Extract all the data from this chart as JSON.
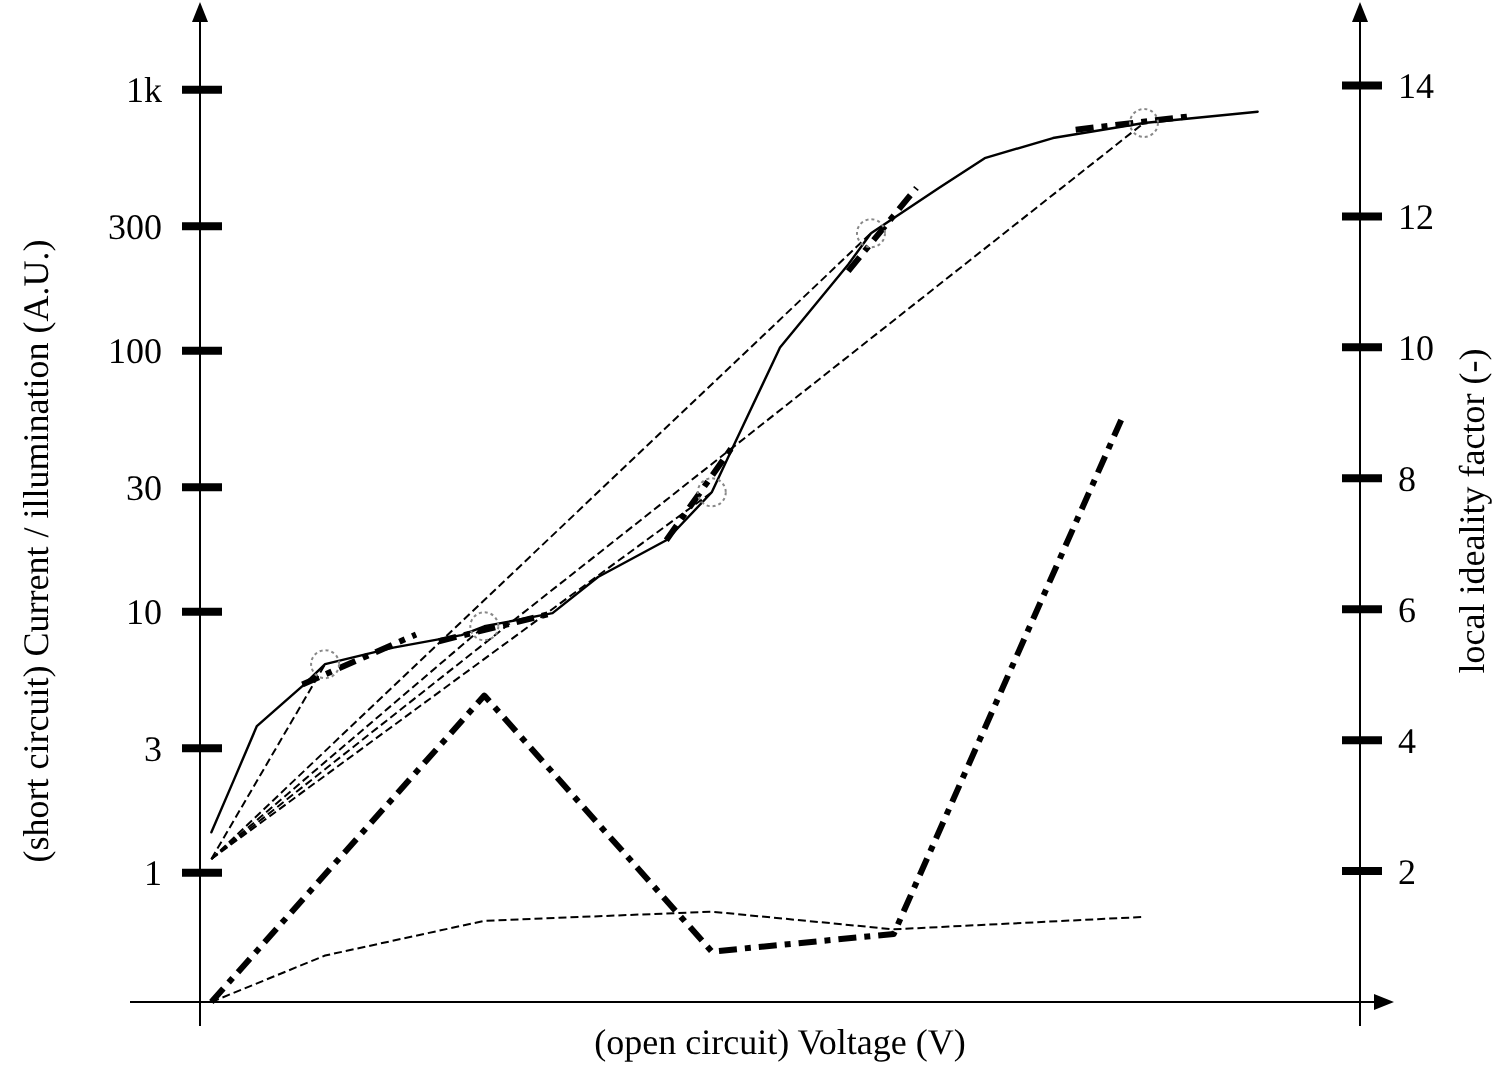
{
  "chart_data": {
    "type": "line",
    "xlabel": "(open circuit) Voltage (V)",
    "ylabel": "(short circuit) Current / illumination (A.U.)",
    "y2label": "local ideality factor (-)",
    "categories": [
      null,
      null,
      null,
      null,
      null,
      null,
      null,
      null,
      null,
      null,
      null,
      null,
      null,
      null,
      null,
      null,
      null,
      null,
      null,
      null,
      null,
      null,
      null,
      null,
      null,
      null,
      null,
      null,
      null,
      null,
      null,
      null,
      null,
      null,
      null,
      null,
      null,
      null,
      null,
      null,
      null,
      null,
      null,
      null,
      null,
      null,
      null,
      null,
      null,
      null,
      null
    ],
    "ylim": [
      0.32,
      1850
    ],
    "yticks": [
      1,
      3,
      10,
      30,
      100,
      300,
      {
        "value": 1000,
        "label": "1k"
      }
    ],
    "y2lim": [
      0,
      15
    ],
    "y2ticks": [
      2,
      4,
      6,
      8,
      10,
      12,
      14
    ],
    "log": "y",
    "grid": false,
    "tick_labels": "y",
    "marker": "none",
    "series": [
      {
        "color": "#000000",
        "line_style": "solid",
        "values": [
          1.43,
          2.28,
          3.65,
          null,
          5.19,
          6.3,
          null,
          null,
          7.29,
          null,
          null,
          8.14,
          8.8,
          null,
          null,
          9.88,
          null,
          13.6,
          null,
          null,
          18.8,
          null,
          28.7,
          44,
          null,
          103,
          null,
          null,
          214,
          282,
          null,
          null,
          421,
          null,
          547,
          null,
          null,
          653,
          null,
          null,
          null,
          746,
          null,
          null,
          null,
          null,
          824,
          null,
          null,
          null,
          null
        ]
      },
      {
        "color": "#000000",
        "line_style": "dotted",
        "values": [
          1.13,
          null,
          null,
          null,
          null,
          6.3,
          null,
          null,
          null,
          null,
          null,
          null,
          null,
          null,
          null,
          null,
          null,
          null,
          null,
          null,
          null,
          null,
          null,
          null,
          null,
          null,
          null,
          null,
          null,
          null,
          null,
          null,
          null,
          null,
          null,
          null,
          null,
          null,
          null,
          null,
          null,
          null,
          null,
          null,
          null,
          null,
          null,
          null,
          null,
          null,
          null
        ]
      },
      {
        "color": "#000000",
        "line_style": "dotted",
        "values": [
          1.13,
          null,
          null,
          null,
          null,
          null,
          null,
          null,
          null,
          null,
          null,
          null,
          8.8,
          null,
          null,
          null,
          null,
          null,
          null,
          null,
          null,
          null,
          null,
          null,
          null,
          null,
          null,
          null,
          null,
          null,
          null,
          null,
          null,
          null,
          null,
          null,
          null,
          null,
          null,
          null,
          null,
          null,
          null,
          null,
          null,
          null,
          null,
          null,
          null,
          null,
          null
        ]
      },
      {
        "color": "#000000",
        "line_style": "dotted",
        "values": [
          1.13,
          null,
          null,
          null,
          null,
          null,
          null,
          null,
          null,
          null,
          null,
          null,
          null,
          null,
          null,
          null,
          null,
          null,
          null,
          null,
          null,
          null,
          28.7,
          null,
          null,
          null,
          null,
          null,
          null,
          null,
          null,
          null,
          null,
          null,
          null,
          null,
          null,
          null,
          null,
          null,
          null,
          null,
          null,
          null,
          null,
          null,
          null,
          null,
          null,
          null,
          null
        ]
      },
      {
        "color": "#000000",
        "line_style": "dotted",
        "values": [
          1.13,
          null,
          null,
          null,
          null,
          null,
          null,
          null,
          null,
          null,
          null,
          null,
          null,
          null,
          null,
          null,
          null,
          null,
          null,
          null,
          null,
          null,
          null,
          null,
          null,
          null,
          null,
          null,
          null,
          282,
          null,
          null,
          null,
          null,
          null,
          null,
          null,
          null,
          null,
          null,
          null,
          null,
          null,
          null,
          null,
          null,
          null,
          null,
          null,
          null,
          null
        ]
      },
      {
        "color": "#000000",
        "line_style": "dotted",
        "values": [
          1.13,
          null,
          null,
          null,
          null,
          null,
          null,
          null,
          null,
          null,
          null,
          null,
          null,
          null,
          null,
          null,
          null,
          null,
          null,
          null,
          null,
          null,
          null,
          null,
          null,
          null,
          null,
          null,
          null,
          null,
          null,
          null,
          null,
          null,
          null,
          null,
          null,
          null,
          null,
          null,
          null,
          746,
          null,
          null,
          null,
          null,
          null,
          null,
          null,
          null,
          null
        ]
      },
      {
        "color": "#000000",
        "line_style": "dashed",
        "values": [
          null,
          null,
          null,
          null,
          5.27,
          null,
          null,
          null,
          null,
          8.19,
          null,
          null,
          null,
          null,
          null,
          null,
          null,
          null,
          null,
          null,
          null,
          null,
          null,
          null,
          null,
          null,
          null,
          null,
          null,
          null,
          null,
          null,
          null,
          null,
          null,
          null,
          null,
          null,
          null,
          null,
          null,
          null,
          null,
          null,
          null,
          null,
          null,
          null,
          null,
          null,
          null
        ]
      },
      {
        "color": "#000000",
        "line_style": "dashed",
        "values": [
          null,
          null,
          null,
          null,
          null,
          null,
          null,
          null,
          null,
          null,
          7.71,
          null,
          null,
          null,
          null,
          9.88,
          null,
          null,
          null,
          null,
          null,
          null,
          null,
          null,
          null,
          null,
          null,
          null,
          null,
          null,
          null,
          null,
          null,
          null,
          null,
          null,
          null,
          null,
          null,
          null,
          null,
          null,
          null,
          null,
          null,
          null,
          null,
          null,
          null,
          null,
          null
        ]
      },
      {
        "color": "#000000",
        "line_style": "dashed",
        "values": [
          null,
          null,
          null,
          null,
          null,
          null,
          null,
          null,
          null,
          null,
          null,
          null,
          null,
          null,
          null,
          null,
          null,
          null,
          null,
          null,
          18.8,
          null,
          null,
          44,
          null,
          null,
          null,
          null,
          null,
          null,
          null,
          null,
          null,
          null,
          null,
          null,
          null,
          null,
          null,
          null,
          null,
          null,
          null,
          null,
          null,
          null,
          null,
          null,
          null,
          null,
          null
        ]
      },
      {
        "color": "#000000",
        "line_style": "dashed",
        "values": [
          null,
          null,
          null,
          null,
          null,
          null,
          null,
          null,
          null,
          null,
          null,
          null,
          null,
          null,
          null,
          null,
          null,
          null,
          null,
          null,
          null,
          null,
          null,
          null,
          null,
          null,
          null,
          null,
          202,
          null,
          null,
          421,
          null,
          null,
          null,
          null,
          null,
          null,
          null,
          null,
          null,
          null,
          null,
          null,
          null,
          null,
          null,
          null,
          null,
          null,
          null
        ]
      },
      {
        "color": "#000000",
        "line_style": "dashed",
        "values": [
          null,
          null,
          null,
          null,
          null,
          null,
          null,
          null,
          null,
          null,
          null,
          null,
          null,
          null,
          null,
          null,
          null,
          null,
          null,
          null,
          null,
          null,
          null,
          null,
          null,
          null,
          null,
          null,
          null,
          null,
          null,
          null,
          null,
          null,
          null,
          null,
          null,
          null,
          703,
          null,
          null,
          null,
          null,
          791,
          null,
          null,
          null,
          null,
          null,
          null,
          null
        ]
      },
      {
        "type": "scatter",
        "marker": "circle",
        "color": "#888888",
        "values": [
          null,
          null,
          null,
          null,
          null,
          6.3,
          null,
          null,
          null,
          null,
          null,
          null,
          8.8,
          null,
          null,
          null,
          null,
          null,
          null,
          null,
          null,
          null,
          28.7,
          null,
          null,
          null,
          null,
          null,
          null,
          282,
          null,
          null,
          null,
          null,
          null,
          null,
          null,
          null,
          null,
          null,
          null,
          746,
          null,
          null,
          null,
          null,
          null,
          null,
          null,
          null,
          null
        ]
      },
      {
        "color": "#000000",
        "line_style": "dashed",
        "axis": "y2",
        "values": [
          0,
          null,
          null,
          null,
          null,
          null,
          null,
          null,
          null,
          null,
          null,
          null,
          4.68,
          null,
          null,
          null,
          null,
          null,
          null,
          null,
          null,
          null,
          0.77,
          null,
          null,
          null,
          null,
          null,
          null,
          null,
          1.04,
          null,
          null,
          null,
          null,
          null,
          null,
          null,
          null,
          null,
          8.89,
          null,
          null,
          null,
          null,
          null,
          null,
          null,
          null,
          null,
          null
        ]
      },
      {
        "color": "#000000",
        "line_style": "dotted",
        "axis": "y2",
        "values": [
          0,
          null,
          null,
          null,
          null,
          0.71,
          null,
          null,
          null,
          null,
          null,
          null,
          1.24,
          null,
          null,
          null,
          null,
          null,
          null,
          null,
          null,
          null,
          1.38,
          null,
          null,
          null,
          null,
          null,
          null,
          null,
          1.11,
          null,
          null,
          null,
          null,
          null,
          null,
          null,
          null,
          null,
          null,
          1.3,
          null,
          null,
          null,
          null,
          null,
          null,
          null,
          null,
          null
        ]
      }
    ]
  }
}
